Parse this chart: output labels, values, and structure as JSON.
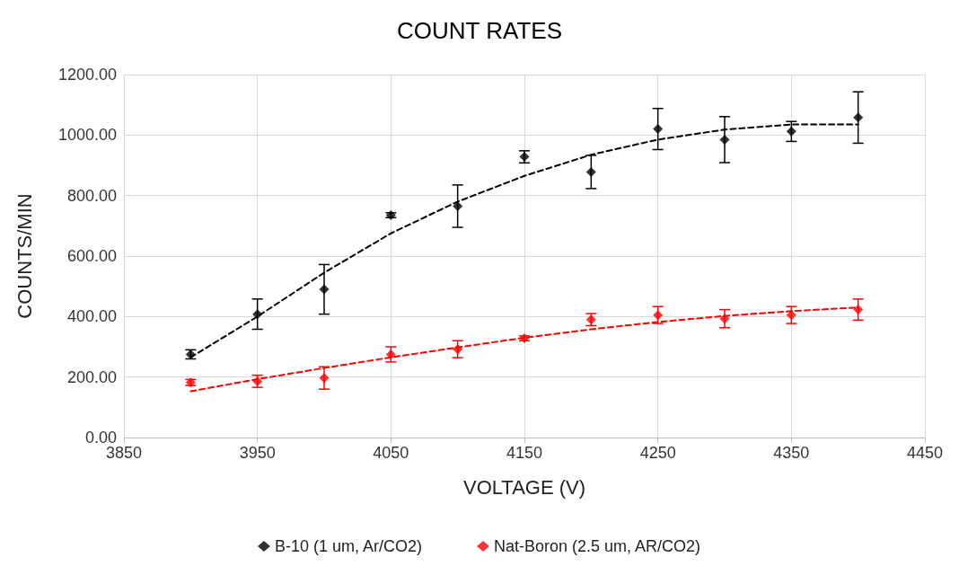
{
  "chart_data": {
    "type": "scatter",
    "title": "COUNT RATES",
    "xlabel": "VOLTAGE (V)",
    "ylabel": "COUNTS/MIN",
    "x": [
      3900,
      3950,
      4000,
      4050,
      4100,
      4150,
      4200,
      4250,
      4300,
      4350,
      4400
    ],
    "series": [
      {
        "name": "B-10 (1 um, Ar/CO2)",
        "color": "#000000",
        "values": [
          275,
          408,
          490,
          735,
          765,
          928,
          878,
          1020,
          985,
          1012,
          1058
        ],
        "errors": [
          15,
          50,
          82,
          8,
          70,
          20,
          55,
          68,
          76,
          33,
          85
        ]
      },
      {
        "name": "Nat-Boron (2.5 um, AR/CO2)",
        "color": "#ff0000",
        "values": [
          182,
          186,
          197,
          275,
          292,
          328,
          390,
          405,
          393,
          405,
          423
        ],
        "errors": [
          10,
          20,
          37,
          25,
          28,
          8,
          20,
          28,
          30,
          28,
          35
        ]
      },
      {
        "color": "#000000",
        "type": "line",
        "marker": "none",
        "line_style": "dashed",
        "values": [
          265,
          400,
          545,
          675,
          780,
          865,
          935,
          985,
          1018,
          1035,
          1035
        ]
      },
      {
        "color": "#ff0000",
        "type": "line",
        "marker": "none",
        "line_style": "dashed",
        "values": [
          153,
          193,
          230,
          265,
          298,
          330,
          358,
          382,
          402,
          418,
          430
        ]
      }
    ],
    "xlim": [
      3850,
      4450
    ],
    "xticks": [
      3850,
      3950,
      4050,
      4150,
      4250,
      4350,
      4450
    ],
    "ylim": [
      0,
      1200
    ],
    "yticks": [
      {
        "value": 0,
        "label": "0.00"
      },
      {
        "value": 200,
        "label": "200.00"
      },
      {
        "value": 400,
        "label": "400.00"
      },
      {
        "value": 600,
        "label": "600.00"
      },
      {
        "value": 800,
        "label": "800.00"
      },
      {
        "value": 1000,
        "label": "1000.00"
      },
      {
        "value": 1200,
        "label": "1200.00"
      }
    ],
    "grid": true,
    "legend": "bottom",
    "marker": "diamond"
  }
}
